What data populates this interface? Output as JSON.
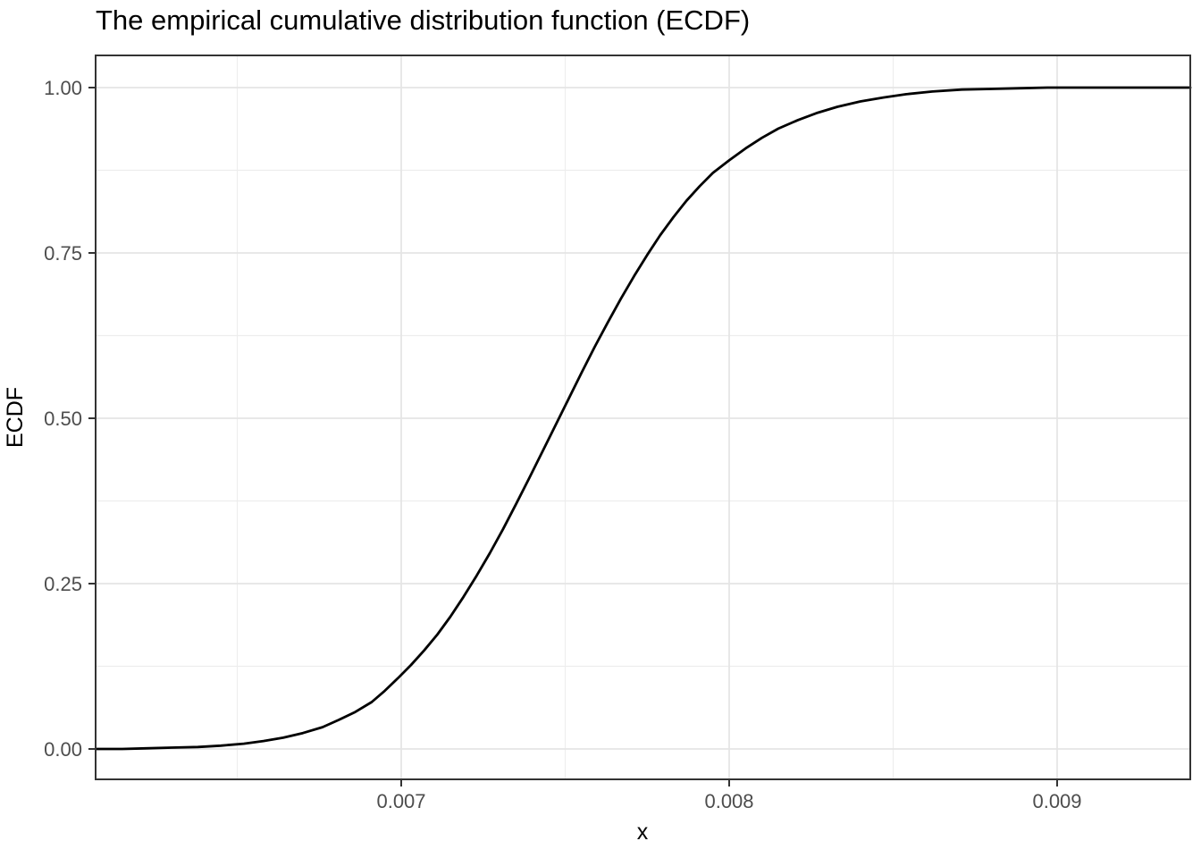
{
  "title": "The empirical cumulative distribution function (ECDF)",
  "x_axis": {
    "label": "x",
    "tick_labels": [
      "0.007",
      "0.008",
      "0.009"
    ],
    "tick_values": [
      0.007,
      0.008,
      0.009
    ],
    "minor_tick_values": [
      0.0065,
      0.0075,
      0.0085
    ],
    "range": [
      0.006068,
      0.009406
    ]
  },
  "y_axis": {
    "label": "ECDF",
    "tick_labels": [
      "0.00",
      "0.25",
      "0.50",
      "0.75",
      "1.00"
    ],
    "tick_values": [
      0,
      0.25,
      0.5,
      0.75,
      1
    ],
    "minor_tick_values": [
      0.125,
      0.375,
      0.625,
      0.875
    ],
    "range": [
      -0.046,
      1.049
    ]
  },
  "colors": {
    "background": "#ffffff",
    "panel_background": "#ffffff",
    "grid_major": "#e5e5e5",
    "grid_minor": "#ededed",
    "panel_border": "#333333",
    "tick_mark": "#333333",
    "tick_label": "#4d4d4d",
    "curve": "#000000",
    "title": "#000000"
  },
  "chart_data": {
    "type": "line",
    "subtype": "ecdf",
    "title": "The empirical cumulative distribution function (ECDF)",
    "xlabel": "x",
    "ylabel": "ECDF",
    "xlim": [
      0.006068,
      0.009406
    ],
    "ylim": [
      -0.046,
      1.049
    ],
    "x_ticks": [
      0.007,
      0.008,
      0.009
    ],
    "y_ticks": [
      0,
      0.25,
      0.5,
      0.75,
      1
    ],
    "grid": true,
    "legend": false,
    "distribution_estimate": {
      "median": 0.00749,
      "sigma": 0.00042,
      "shape": "normal-cdf"
    },
    "points": [
      [
        0.006068,
        0.0
      ],
      [
        0.00615,
        0.0
      ],
      [
        0.00622,
        0.001
      ],
      [
        0.0063,
        0.002
      ],
      [
        0.00638,
        0.003
      ],
      [
        0.00645,
        0.005
      ],
      [
        0.00652,
        0.008
      ],
      [
        0.00658,
        0.012
      ],
      [
        0.00664,
        0.017
      ],
      [
        0.0067,
        0.024
      ],
      [
        0.00676,
        0.033
      ],
      [
        0.00681,
        0.044
      ],
      [
        0.00686,
        0.056
      ],
      [
        0.00691,
        0.071
      ],
      [
        0.00695,
        0.088
      ],
      [
        0.00699,
        0.107
      ],
      [
        0.00703,
        0.127
      ],
      [
        0.00707,
        0.149
      ],
      [
        0.00711,
        0.173
      ],
      [
        0.00715,
        0.2
      ],
      [
        0.00719,
        0.23
      ],
      [
        0.00723,
        0.262
      ],
      [
        0.00727,
        0.296
      ],
      [
        0.00731,
        0.332
      ],
      [
        0.00735,
        0.37
      ],
      [
        0.00739,
        0.409
      ],
      [
        0.00743,
        0.449
      ],
      [
        0.00747,
        0.489
      ],
      [
        0.00751,
        0.529
      ],
      [
        0.00755,
        0.569
      ],
      [
        0.00759,
        0.608
      ],
      [
        0.00763,
        0.645
      ],
      [
        0.00767,
        0.681
      ],
      [
        0.00771,
        0.715
      ],
      [
        0.00775,
        0.747
      ],
      [
        0.00779,
        0.777
      ],
      [
        0.00783,
        0.804
      ],
      [
        0.00787,
        0.829
      ],
      [
        0.00791,
        0.851
      ],
      [
        0.00795,
        0.871
      ],
      [
        0.008,
        0.89
      ],
      [
        0.00805,
        0.908
      ],
      [
        0.0081,
        0.924
      ],
      [
        0.00815,
        0.938
      ],
      [
        0.00821,
        0.951
      ],
      [
        0.00827,
        0.962
      ],
      [
        0.00833,
        0.971
      ],
      [
        0.0084,
        0.979
      ],
      [
        0.00847,
        0.985
      ],
      [
        0.00854,
        0.99
      ],
      [
        0.00862,
        0.994
      ],
      [
        0.00871,
        0.997
      ],
      [
        0.0088,
        0.998
      ],
      [
        0.00889,
        0.999
      ],
      [
        0.00897,
        1.0
      ],
      [
        0.009406,
        1.0
      ]
    ]
  }
}
